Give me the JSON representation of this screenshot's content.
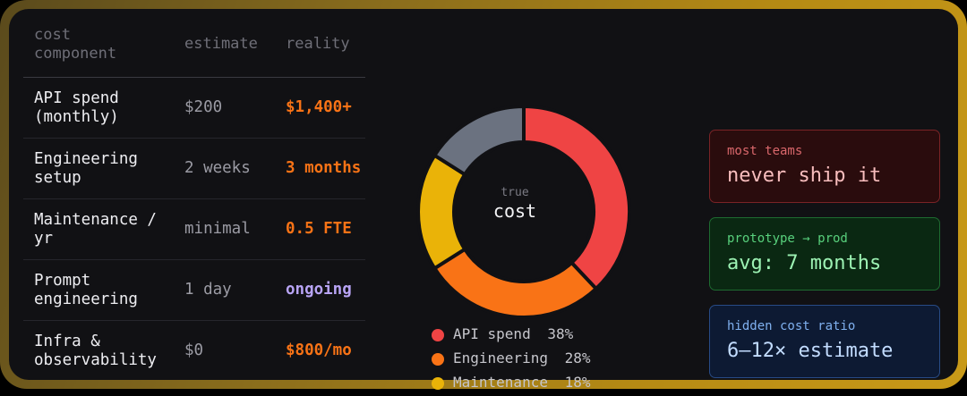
{
  "table": {
    "headers": [
      "cost component",
      "estimate",
      "reality"
    ],
    "rows": [
      {
        "component": "API spend (monthly)",
        "estimate": "$200",
        "reality": "$1,400+",
        "reality_color": "#f97316"
      },
      {
        "component": "Engineering setup",
        "estimate": "2 weeks",
        "reality": "3 months",
        "reality_color": "#f97316"
      },
      {
        "component": "Maintenance / yr",
        "estimate": "minimal",
        "reality": "0.5 FTE",
        "reality_color": "#f97316"
      },
      {
        "component": "Prompt engineering",
        "estimate": "1 day",
        "reality": "ongoing",
        "reality_color": "#b8a4f5"
      },
      {
        "component": "Infra & observability",
        "estimate": "$0",
        "reality": "$800/mo",
        "reality_color": "#f97316"
      }
    ]
  },
  "chart_data": {
    "type": "pie",
    "center_label_small": "true",
    "center_label_big": "cost",
    "series": [
      {
        "name": "API spend",
        "value": 38,
        "label": "38%",
        "color": "#ef4444"
      },
      {
        "name": "Engineering",
        "value": 28,
        "label": "28%",
        "color": "#f97316"
      },
      {
        "name": "Maintenance",
        "value": 18,
        "label": "18%",
        "color": "#eab308"
      },
      {
        "name": "",
        "value": 16,
        "label": "",
        "color": "#6b7280"
      }
    ]
  },
  "cards": [
    {
      "label": "most teams",
      "value": "never ship it"
    },
    {
      "label": "prototype → prod",
      "value": "avg: 7 months"
    },
    {
      "label": "hidden cost ratio",
      "value": "6–12× estimate"
    }
  ]
}
